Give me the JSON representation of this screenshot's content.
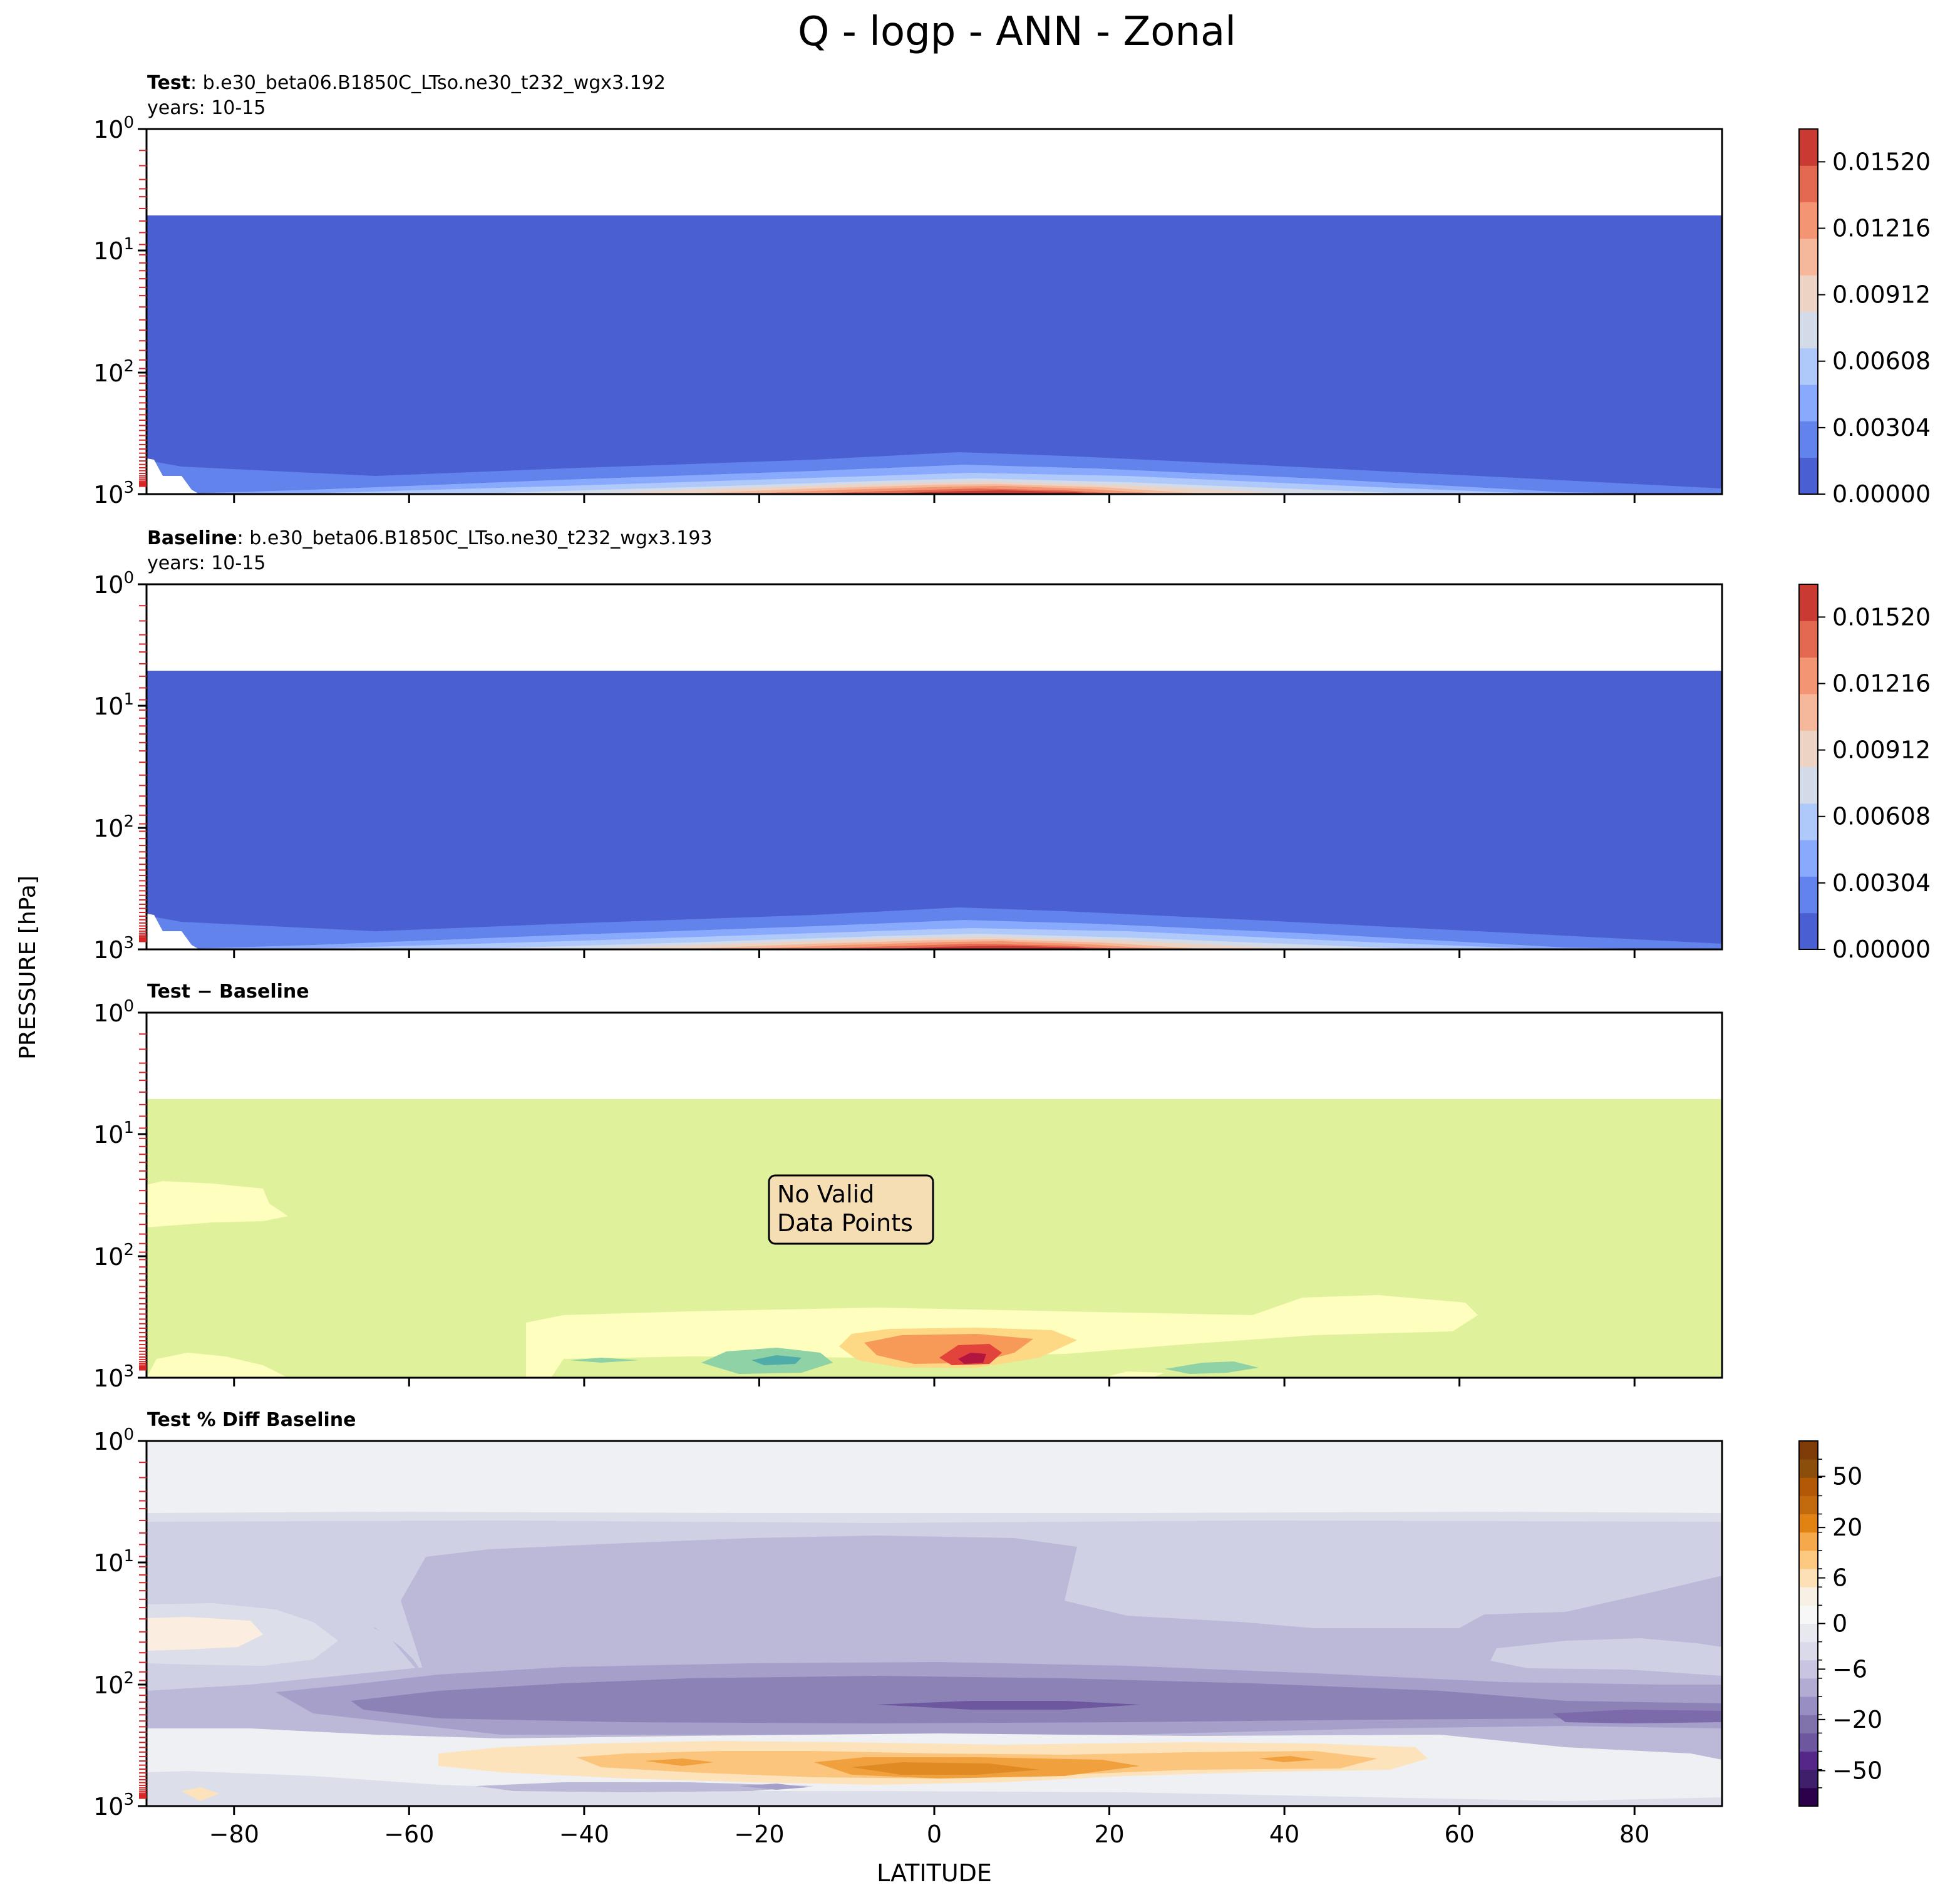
{
  "figure": {
    "title": "Q - logp - ANN - Zonal",
    "shared_ylabel": "PRESSURE [hPa]",
    "shared_xlabel": "LATITUDE"
  },
  "chart_data": [
    {
      "type": "heatmap",
      "panel": "test",
      "title_bold": "Test",
      "title_rest": ": b.e30_beta06.B1850C_LTso.ne30_t232_wgx3.192",
      "subtitle": "years: 10-15",
      "x": {
        "range": [
          -90,
          90
        ],
        "ticks": [
          -80,
          -60,
          -40,
          -20,
          0,
          20,
          40,
          60,
          80
        ],
        "tick_labels_shown": false
      },
      "y": {
        "scale": "log",
        "range": [
          1,
          1000
        ],
        "inverted": true,
        "ticks": [
          1,
          10,
          100,
          1000
        ],
        "tick_labels": [
          "10^0",
          "10^1",
          "10^2",
          "10^3"
        ],
        "data_top_hPa": 4.8
      },
      "colormap": "coolwarm",
      "colorbar": {
        "ticks": [
          0.0,
          0.00304,
          0.00608,
          0.00912,
          0.01216,
          0.0152
        ],
        "tick_labels": [
          "0.00000",
          "0.00304",
          "0.00608",
          "0.00912",
          "0.01216",
          "0.01520"
        ],
        "range": [
          0,
          0.0167
        ]
      },
      "colors": [
        "#4a5fd1",
        "#6282ec",
        "#88a9fc",
        "#b0c9fb",
        "#d3dbe8",
        "#ecd3c4",
        "#f5b89a",
        "#f39473",
        "#e36a50",
        "#c93a33"
      ],
      "field_description": "specific humidity (kg/kg) peaks ~0.016 near 5N at 1000 hPa, falls to ~0 above 500 hPa"
    },
    {
      "type": "heatmap",
      "panel": "baseline",
      "title_bold": "Baseline",
      "title_rest": ": b.e30_beta06.B1850C_LTso.ne30_t232_wgx3.193",
      "subtitle": "years: 10-15",
      "x": {
        "range": [
          -90,
          90
        ],
        "ticks": [
          -80,
          -60,
          -40,
          -20,
          0,
          20,
          40,
          60,
          80
        ],
        "tick_labels_shown": false
      },
      "y": {
        "scale": "log",
        "range": [
          1,
          1000
        ],
        "inverted": true,
        "ticks": [
          1,
          10,
          100,
          1000
        ],
        "tick_labels": [
          "10^0",
          "10^1",
          "10^2",
          "10^3"
        ],
        "data_top_hPa": 4.8
      },
      "colormap": "coolwarm",
      "colorbar": {
        "ticks": [
          0.0,
          0.00304,
          0.00608,
          0.00912,
          0.01216,
          0.0152
        ],
        "tick_labels": [
          "0.00000",
          "0.00304",
          "0.00608",
          "0.00912",
          "0.01216",
          "0.01520"
        ],
        "range": [
          0,
          0.0167
        ]
      }
    },
    {
      "type": "heatmap",
      "panel": "difference",
      "title_bold": "Test − Baseline",
      "annotation": [
        "No Valid",
        "Data Points"
      ],
      "x": {
        "range": [
          -90,
          90
        ],
        "ticks": [
          -80,
          -60,
          -40,
          -20,
          0,
          20,
          40,
          60,
          80
        ],
        "tick_labels_shown": false
      },
      "y": {
        "scale": "log",
        "range": [
          1,
          1000
        ],
        "inverted": true,
        "ticks": [
          1,
          10,
          100,
          1000
        ],
        "tick_labels": [
          "10^0",
          "10^1",
          "10^2",
          "10^3"
        ],
        "data_top_hPa": 4.8
      },
      "colormap": "Spectral_r",
      "colorbar": null,
      "colors": {
        "background": "#dff19b",
        "light": "#feffbe",
        "orange_light": "#fdd885",
        "orange": "#f89a57",
        "red": "#e2433a",
        "darkred": "#b2153f",
        "teal_light": "#8fd2a5",
        "teal": "#50aca8"
      }
    },
    {
      "type": "heatmap",
      "panel": "percent_difference",
      "title_bold": "Test % Diff Baseline",
      "x": {
        "range": [
          -90,
          90
        ],
        "ticks": [
          -80,
          -60,
          -40,
          -20,
          0,
          20,
          40,
          60,
          80
        ],
        "tick_labels": [
          "−80",
          "−60",
          "−40",
          "−20",
          "0",
          "20",
          "40",
          "60",
          "80"
        ]
      },
      "y": {
        "scale": "log",
        "range": [
          1,
          1000
        ],
        "inverted": true,
        "ticks": [
          1,
          10,
          100,
          1000
        ],
        "tick_labels": [
          "10^0",
          "10^1",
          "10^2",
          "10^3"
        ]
      },
      "colormap": "PuOr_r",
      "colorbar": {
        "ticks": [
          50,
          20,
          6,
          0,
          -6,
          -20,
          -50
        ],
        "tick_labels": [
          "50",
          "20",
          "6",
          "0",
          "−6",
          "−20",
          "−50"
        ],
        "range": [
          -70,
          70
        ]
      },
      "colors": {
        "top": "#eef0f4",
        "v1": "#dcdfea",
        "v2": "#cfd0e4",
        "v3": "#bbb8d8",
        "v4": "#a59fca",
        "v5": "#8c82b6",
        "v6": "#6d58a0",
        "o1": "#fde3bc",
        "o2": "#fbc57e",
        "o3": "#f0a03c",
        "o4": "#e08a23"
      }
    }
  ]
}
